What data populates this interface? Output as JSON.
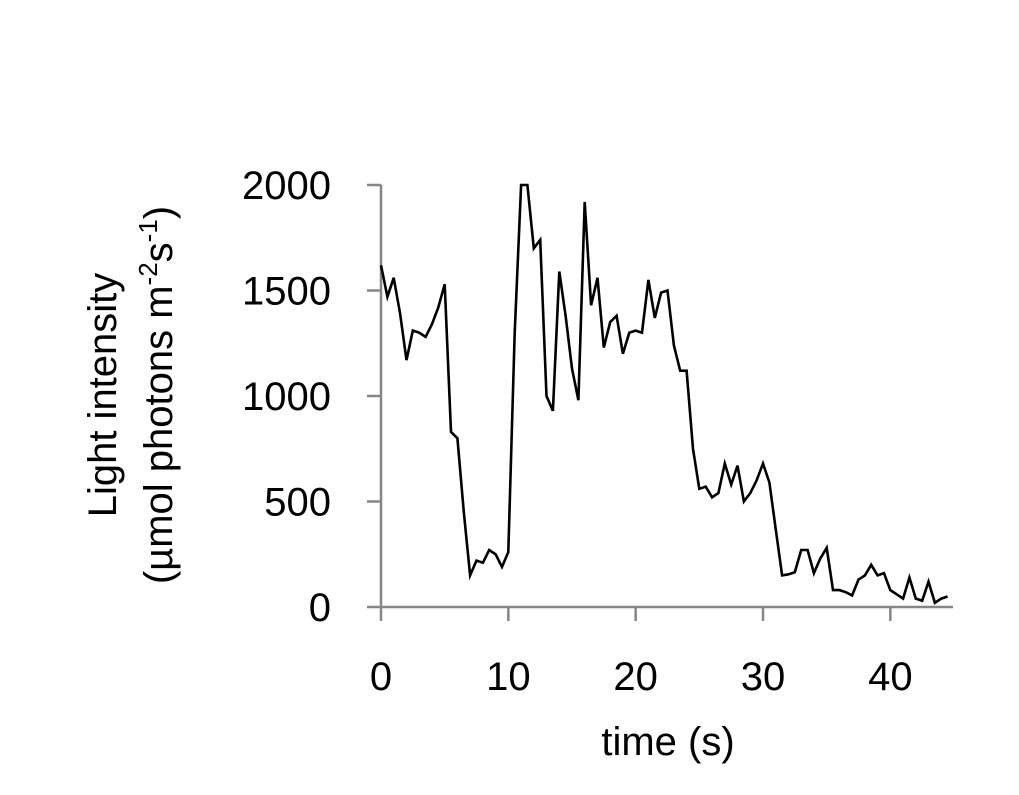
{
  "chart_data": {
    "type": "line",
    "title": "",
    "xlabel": "time (s)",
    "ylabel": {
      "line1": "Light intensity",
      "line2_prefix": "(µmol photons m",
      "sup1": "-2",
      "mid": "s",
      "sup2": "-1",
      "suffix": ")"
    },
    "xlim": [
      0,
      45
    ],
    "ylim": [
      0,
      2000
    ],
    "xticks": [
      "0",
      "10",
      "20",
      "30",
      "40"
    ],
    "yticks": [
      "0",
      "500",
      "1000",
      "1500",
      "2000"
    ],
    "grid": false,
    "legend": "none",
    "colors": {
      "line": "#000000",
      "axis": "#868686"
    },
    "series": [
      {
        "x": [
          0,
          0.5,
          1,
          1.5,
          2,
          2.5,
          3,
          3.5,
          4,
          4.5,
          5,
          5.5,
          6,
          6.5,
          7,
          7.5,
          8,
          8.5,
          9,
          9.5,
          10,
          10.5,
          11,
          11.5,
          12,
          12.5,
          13,
          13.5,
          14,
          14.5,
          15,
          15.5,
          16,
          16.5,
          17,
          17.5,
          18,
          18.5,
          19,
          19.5,
          20,
          20.5,
          21,
          21.5,
          22,
          22.5,
          23,
          23.5,
          24,
          24.5,
          25,
          25.5,
          26,
          26.5,
          27,
          27.5,
          28,
          28.5,
          29,
          29.5,
          30,
          30.5,
          31,
          31.5,
          32,
          32.5,
          33,
          33.5,
          34,
          34.5,
          35,
          35.5,
          36,
          36.5,
          37,
          37.5,
          38,
          38.5,
          39,
          39.5,
          40,
          40.5,
          41,
          41.5,
          42,
          42.5,
          43,
          43.5,
          44,
          44.5
        ],
        "values": [
          1620,
          1470,
          1560,
          1390,
          1170,
          1310,
          1300,
          1280,
          1340,
          1420,
          1530,
          830,
          800,
          450,
          150,
          220,
          210,
          270,
          250,
          190,
          260,
          1300,
          2000,
          2000,
          1700,
          1740,
          1000,
          930,
          1590,
          1380,
          1130,
          980,
          1920,
          1430,
          1560,
          1230,
          1350,
          1380,
          1200,
          1300,
          1310,
          1300,
          1550,
          1370,
          1490,
          1500,
          1240,
          1120,
          1120,
          750,
          560,
          570,
          520,
          540,
          680,
          580,
          670,
          500,
          540,
          600,
          680,
          590,
          370,
          150,
          155,
          165,
          270,
          270,
          160,
          230,
          280,
          80,
          80,
          70,
          55,
          130,
          150,
          200,
          150,
          160,
          80,
          60,
          40,
          140,
          40,
          30,
          120,
          20,
          40,
          50
        ]
      }
    ]
  }
}
